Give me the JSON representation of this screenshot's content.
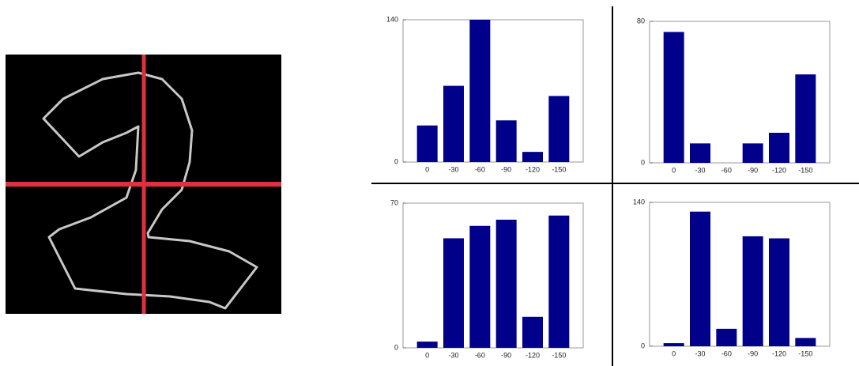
{
  "chart_data": [
    {
      "type": "bar",
      "categories": [
        "0",
        "-30",
        "-60",
        "-90",
        "-120",
        "-150"
      ],
      "values": [
        36,
        75,
        140,
        41,
        10,
        65
      ],
      "color": "#00008b",
      "ylim": [
        0,
        140
      ],
      "yticks": [
        0,
        140
      ]
    },
    {
      "type": "bar",
      "categories": [
        "0",
        "-30",
        "-60",
        "-90",
        "-120",
        "-150"
      ],
      "values": [
        74,
        11,
        0,
        11,
        17,
        50
      ],
      "color": "#00008b",
      "ylim": [
        0,
        80
      ],
      "yticks": [
        0,
        80
      ]
    },
    {
      "type": "bar",
      "categories": [
        "0",
        "-30",
        "-60",
        "-90",
        "-120",
        "-150"
      ],
      "values": [
        3,
        53,
        59,
        62,
        15,
        64
      ],
      "color": "#00008b",
      "ylim": [
        0,
        70
      ],
      "yticks": [
        0,
        70
      ]
    },
    {
      "type": "bar",
      "categories": [
        "0",
        "-30",
        "-60",
        "-90",
        "-120",
        "-150"
      ],
      "values": [
        3,
        131,
        17,
        107,
        105,
        8
      ],
      "color": "#00008b",
      "ylim": [
        0,
        140
      ],
      "yticks": [
        0,
        140
      ]
    }
  ]
}
